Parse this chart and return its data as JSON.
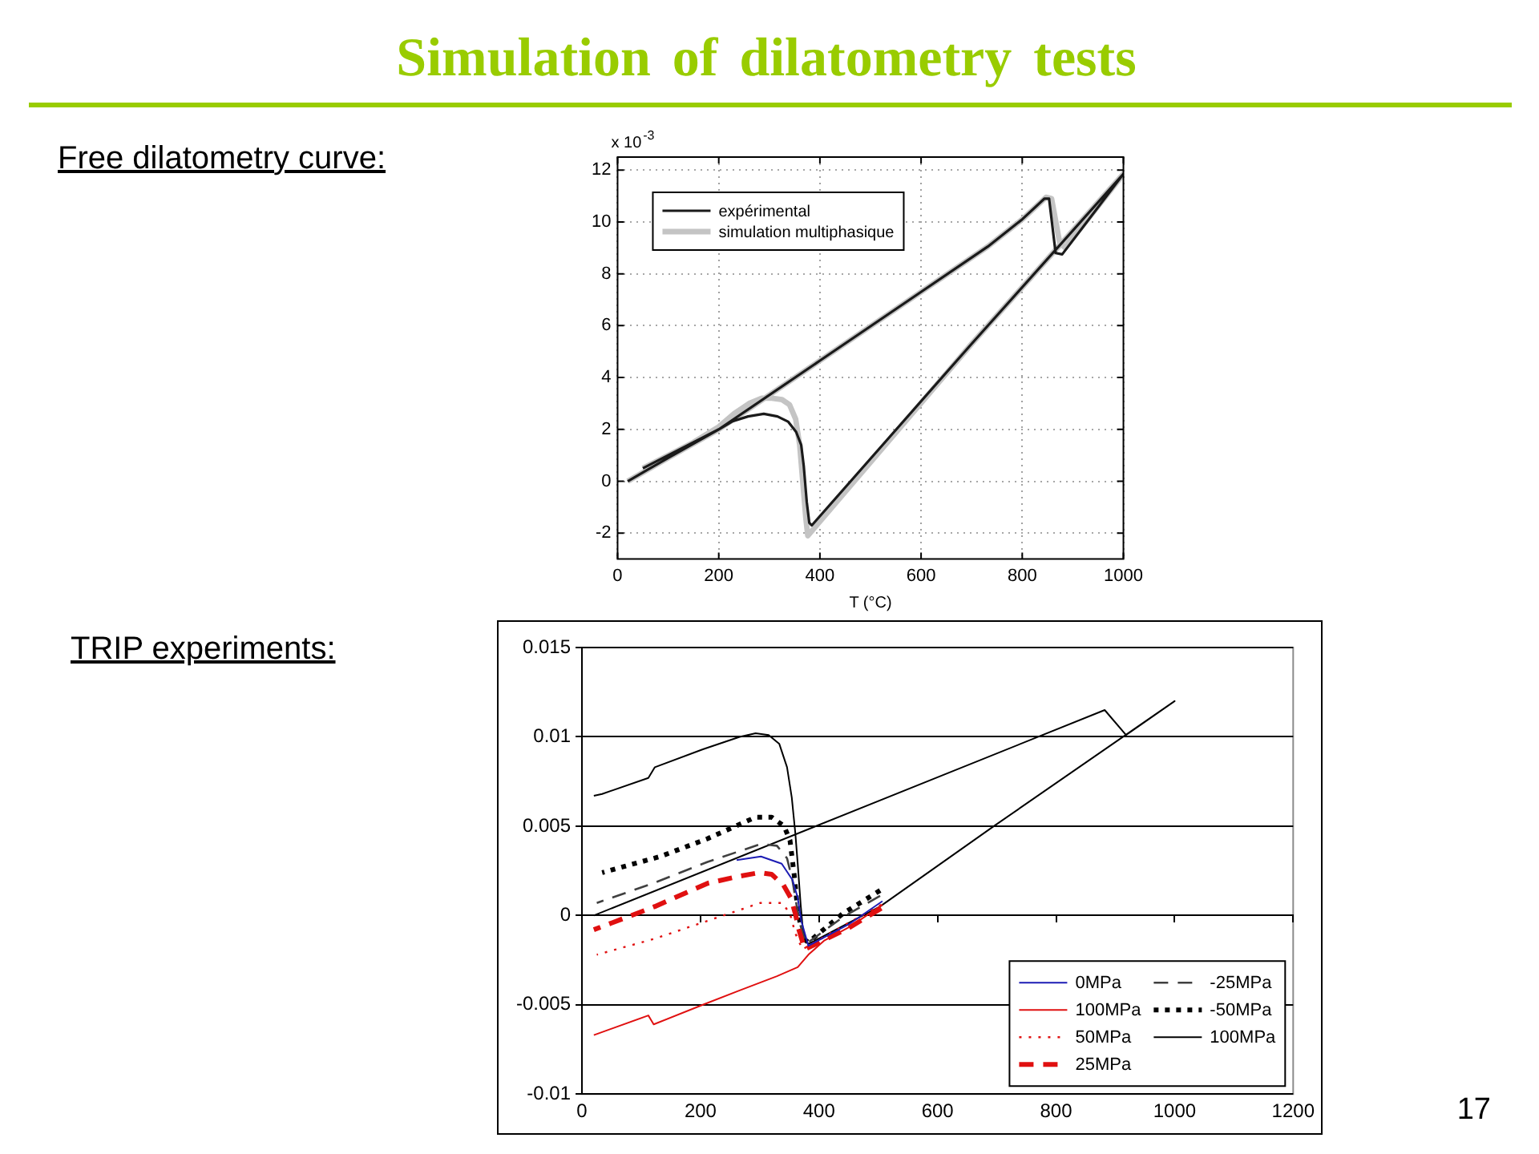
{
  "chart_data": [
    {
      "type": "line",
      "title": "Simulation of dilatometry tests",
      "xlabel": "T (°C)",
      "annotations": [
        "Free dilatometry curve:",
        "x 10$^{-3}$"
      ],
      "xlim": [
        0,
        1000
      ],
      "xticks": [
        0,
        200,
        400,
        600,
        800,
        1000
      ],
      "ylim": [
        -3,
        12.5
      ],
      "yticks": [
        -2,
        0,
        2,
        4,
        6,
        8,
        10,
        12
      ],
      "grid": true,
      "legend": "top left",
      "line_style": "solid",
      "series": [
        {
          "name": "expérimental",
          "color": "#1a1a1a",
          "x": [
            20,
            60,
            100,
            150,
            200,
            400,
            600,
            732,
            800,
            844,
            853,
            866,
            879,
            1000,
            700,
            384,
            379,
            374,
            368,
            363,
            353,
            337,
            316,
            289,
            258,
            226,
            200,
            150,
            100,
            50
          ],
          "values": [
            0,
            0.45,
            0.9,
            1.45,
            2,
            4.65,
            7.3,
            9.05,
            10.1,
            10.9,
            10.9,
            8.8,
            8.75,
            11.85,
            5.3,
            -1.7,
            -1.6,
            -0.8,
            0.6,
            1.4,
            1.9,
            2.3,
            2.5,
            2.6,
            2.5,
            2.3,
            2,
            1.5,
            1,
            0.5
          ]
        },
        {
          "name": "simulation multiphasique",
          "color": "#c4c4c4",
          "x": [
            20,
            100,
            200,
            400,
            600,
            732,
            800,
            847,
            858,
            874,
            885,
            1000,
            700,
            376,
            372,
            366,
            360,
            352,
            340,
            325,
            305,
            285,
            260,
            230,
            200,
            150,
            100,
            50
          ],
          "values": [
            0,
            0.9,
            2,
            4.65,
            7.3,
            9.05,
            10.1,
            10.95,
            10.9,
            9.2,
            9,
            11.85,
            5.3,
            -2.1,
            -1.4,
            0,
            1.4,
            2.4,
            2.95,
            3.15,
            3.2,
            3.2,
            3,
            2.6,
            2.1,
            1.5,
            1,
            0.5
          ]
        }
      ]
    },
    {
      "type": "line",
      "title": "TRIP experiments:",
      "annotations": [
        "17"
      ],
      "xlim": [
        0,
        1200
      ],
      "xticks": [
        0,
        200,
        400,
        600,
        800,
        1000,
        1200
      ],
      "ylim": [
        -0.01,
        0.015
      ],
      "yticks": [
        -0.01,
        -0.005,
        0,
        0.005,
        0.01,
        0.015
      ],
      "grid": "y",
      "legend": "bottom right",
      "series": [
        {
          "name": "0MPa",
          "color": "#1c1cb4",
          "line_style": "solid",
          "x": [
            507,
            450,
            382,
            370,
            364,
            355,
            337,
            302,
            261
          ],
          "values": [
            0.0008,
            -0.0005,
            -0.0017,
            -0.0003,
            0.001,
            0.002,
            0.0029,
            0.0033,
            0.0031
          ]
        },
        {
          "name": "100MPa",
          "color": "#e01010",
          "line_style": "solid",
          "x": [
            507,
            454,
            409,
            382,
            364,
            329,
            266,
            204,
            121,
            112,
            20
          ],
          "values": [
            0.0006,
            -0.0006,
            -0.0014,
            -0.0022,
            -0.0029,
            -0.0034,
            -0.0042,
            -0.005,
            -0.0061,
            -0.0056,
            -0.0067
          ]
        },
        {
          "name": "50MPa",
          "color": "#e01010",
          "line_style": "dotted",
          "x": [
            505,
            440,
            372,
            360,
            351,
            338,
            301,
            212,
            123,
            25
          ],
          "values": [
            0.0006,
            -0.0006,
            -0.0019,
            -0.001,
            0.0001,
            0.0007,
            0.0007,
            -0.0003,
            -0.0013,
            -0.0022
          ]
        },
        {
          "name": "25MPa",
          "color": "#e01010",
          "line_style": "dashed",
          "x": [
            505,
            450,
            376,
            366,
            360,
            352,
            340,
            320,
            300,
            266,
            212,
            123,
            20
          ],
          "values": [
            0.0004,
            -0.0007,
            -0.0019,
            -0.0008,
            0.0001,
            0.001,
            0.0017,
            0.0023,
            0.0024,
            0.0022,
            0.0018,
            0.0005,
            -0.0008
          ]
        },
        {
          "name": "-25MPa",
          "color": "#404040",
          "line_style": "dashed",
          "x": [
            503,
            440,
            378,
            369,
            362,
            355,
            346,
            329,
            302,
            212,
            120,
            25
          ],
          "values": [
            0.0011,
            -0.0001,
            -0.0016,
            -0.0006,
            0.0006,
            0.002,
            0.0032,
            0.0039,
            0.004,
            0.003,
            0.0018,
            0.0007
          ]
        },
        {
          "name": "-50MPa",
          "color": "#000000",
          "line_style": "dotted",
          "x": [
            503,
            440,
            382,
            373,
            364,
            358,
            351,
            341,
            320,
            293,
            212,
            132,
            34
          ],
          "values": [
            0.0014,
            0.0001,
            -0.0015,
            -0.0013,
            0.0003,
            0.0023,
            0.0042,
            0.005,
            0.0055,
            0.0055,
            0.0043,
            0.0033,
            0.0024
          ]
        },
        {
          "name": "100MPa",
          "color": "#000000",
          "line_style": "solid",
          "x": [
            20,
            882,
            918,
            1000,
            695,
            503,
            382,
            378,
            373,
            369,
            364,
            360,
            354,
            346,
            333,
            315,
            293,
            266,
            204,
            123,
            112,
            34,
            20
          ],
          "values": [
            0,
            0.0115,
            0.0101,
            0.012,
            0.005,
            0.0005,
            -0.0016,
            -0.0014,
            -0.0009,
            0.0006,
            0.0029,
            0.0046,
            0.0066,
            0.0083,
            0.0096,
            0.0101,
            0.0102,
            0.01,
            0.0093,
            0.0083,
            0.0077,
            0.0068,
            0.0067
          ]
        }
      ]
    }
  ]
}
